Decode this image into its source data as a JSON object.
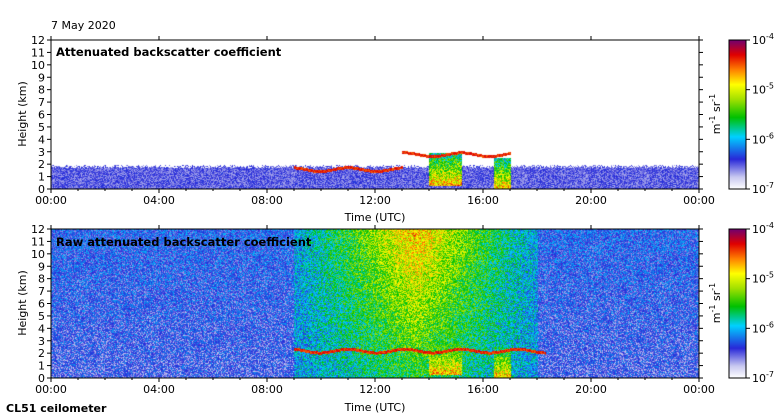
{
  "header": {
    "date": "7 May 2020"
  },
  "footer": {
    "instrument": "CL51 ceilometer"
  },
  "chart_data": [
    {
      "type": "heatmap",
      "title": "Attenuated backscatter coefficient",
      "xlabel": "Time (UTC)",
      "ylabel": "Height (km)",
      "xticks": [
        "00:00",
        "04:00",
        "08:00",
        "12:00",
        "16:00",
        "20:00",
        "00:00"
      ],
      "xlim_hours": [
        0,
        24
      ],
      "ylim": [
        0,
        12
      ],
      "yticks": [
        0,
        1,
        2,
        3,
        4,
        5,
        6,
        7,
        8,
        9,
        10,
        11,
        12
      ],
      "colorbar": {
        "label": "m-1 sr-1",
        "ticks": [
          "10-7",
          "10-6",
          "10-5",
          "10-4"
        ],
        "range": [
          1e-07,
          0.0001
        ],
        "scale": "log"
      },
      "features": [
        {
          "kind": "boundary_layer",
          "hours": [
            0,
            24
          ],
          "top_km": 1.7
        },
        {
          "kind": "cloud_layer",
          "hours": [
            9.0,
            13.0
          ],
          "height_km": 1.6
        },
        {
          "kind": "cloud_layer",
          "hours": [
            13.0,
            17.0
          ],
          "height_km": 2.8
        },
        {
          "kind": "cloud_column",
          "hours": [
            14.0,
            15.2
          ],
          "base_km": 0.3,
          "top_km": 2.9
        },
        {
          "kind": "cloud_column",
          "hours": [
            16.4,
            17.0
          ],
          "base_km": 0.0,
          "top_km": 2.5
        }
      ]
    },
    {
      "type": "heatmap",
      "title": "Raw attenuated backscatter coefficient",
      "xlabel": "Time (UTC)",
      "ylabel": "Height (km)",
      "xticks": [
        "00:00",
        "04:00",
        "08:00",
        "12:00",
        "16:00",
        "20:00",
        "00:00"
      ],
      "xlim_hours": [
        0,
        24
      ],
      "ylim": [
        0,
        12
      ],
      "yticks": [
        0,
        1,
        2,
        3,
        4,
        5,
        6,
        7,
        8,
        9,
        10,
        11,
        12
      ],
      "colorbar": {
        "label": "m-1 sr-1",
        "ticks": [
          "10-7",
          "10-6",
          "10-5",
          "10-4"
        ],
        "range": [
          1e-07,
          0.0001
        ],
        "scale": "log"
      },
      "features": [
        {
          "kind": "noise_background",
          "hours": [
            0,
            24
          ],
          "top_km": 12
        },
        {
          "kind": "high_noise_band",
          "hours": [
            9.0,
            18.0
          ],
          "top_km": 12
        },
        {
          "kind": "cloud_layer",
          "hours": [
            9.0,
            18.3
          ],
          "height_km": 2.2
        },
        {
          "kind": "cloud_column",
          "hours": [
            14.0,
            15.2
          ],
          "base_km": 0.3,
          "top_km": 2.9
        },
        {
          "kind": "cloud_column",
          "hours": [
            16.4,
            17.0
          ],
          "base_km": 0.0,
          "top_km": 2.5
        }
      ]
    }
  ]
}
